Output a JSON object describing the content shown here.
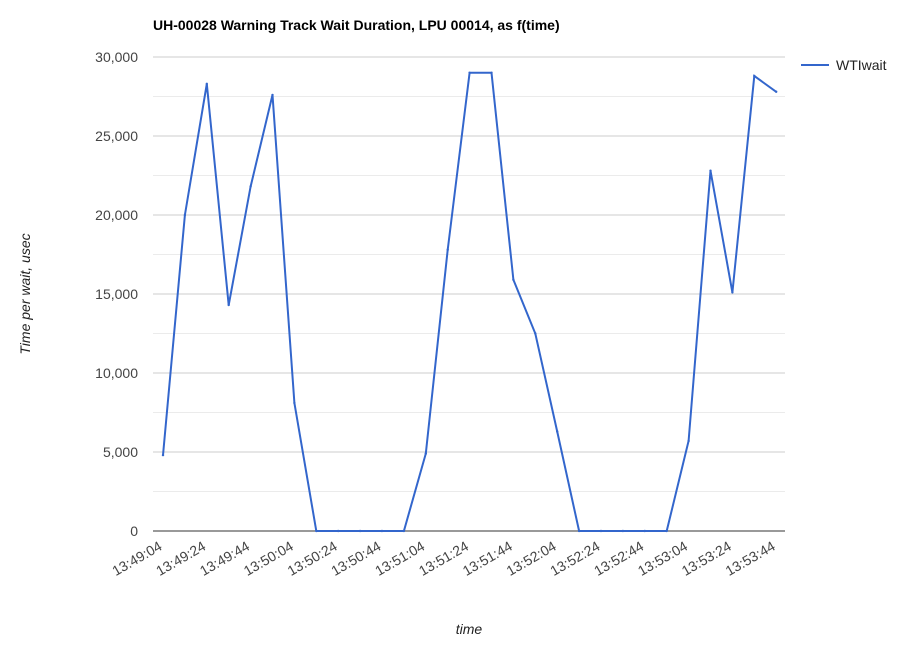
{
  "chart_data": {
    "type": "line",
    "title": "UH-00028 Warning Track Wait Duration, LPU 00014, as f(time)",
    "xlabel": "time",
    "ylabel": "Time per wait, usec",
    "ylim": [
      0,
      30000
    ],
    "y_ticks": [
      "0",
      "5,000",
      "10,000",
      "15,000",
      "20,000",
      "25,000",
      "30,000"
    ],
    "x_ticks": [
      "13:49:04",
      "13:49:24",
      "13:49:44",
      "13:50:04",
      "13:50:24",
      "13:50:44",
      "13:51:04",
      "13:51:24",
      "13:51:44",
      "13:52:04",
      "13:52:24",
      "13:52:44",
      "13:53:04",
      "13:53:24",
      "13:53:44"
    ],
    "x": [
      "13:49:04",
      "13:49:14",
      "13:49:24",
      "13:49:34",
      "13:49:44",
      "13:49:54",
      "13:50:04",
      "13:50:14",
      "13:50:24",
      "13:50:34",
      "13:50:44",
      "13:50:54",
      "13:51:04",
      "13:51:14",
      "13:51:24",
      "13:51:34",
      "13:51:44",
      "13:51:54",
      "13:52:04",
      "13:52:14",
      "13:52:24",
      "13:52:34",
      "13:52:44",
      "13:52:54",
      "13:53:04",
      "13:53:14",
      "13:53:24",
      "13:53:34",
      "13:53:44"
    ],
    "series": [
      {
        "name": "WTIwait",
        "color": "#3366cc",
        "values": [
          4800,
          20000,
          28300,
          14300,
          21800,
          27600,
          8100,
          0,
          0,
          0,
          0,
          0,
          4900,
          17800,
          29000,
          29000,
          15900,
          12500,
          6300,
          0,
          0,
          0,
          0,
          0,
          5700,
          22800,
          15100,
          28800,
          27800
        ]
      }
    ],
    "legend_position": "right",
    "grid": true
  }
}
